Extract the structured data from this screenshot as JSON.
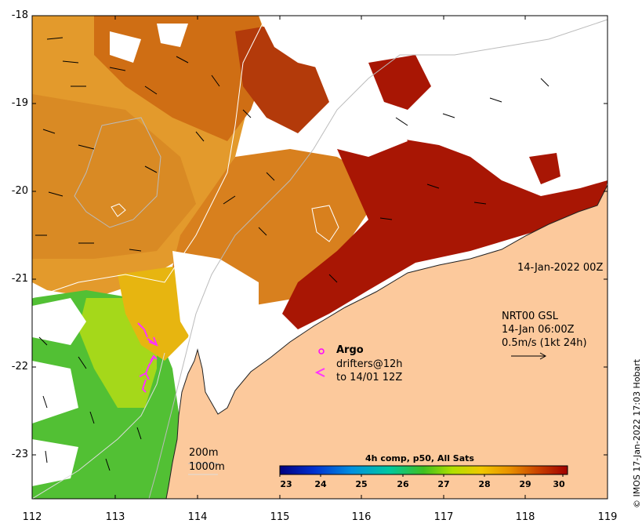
{
  "map": {
    "lat_ticks": [
      "-18",
      "-19",
      "-20",
      "-21",
      "-22",
      "-23"
    ],
    "lon_ticks": [
      "112",
      "113",
      "114",
      "115",
      "116",
      "117",
      "118",
      "119"
    ],
    "date_label": "14-Jan-2022 00Z",
    "current_label": {
      "line1": "NRT00 GSL",
      "line2": "14-Jan 06:00Z",
      "line3": "0.5m/s (1kt 24h)"
    },
    "legend": {
      "argo": "Argo",
      "drifters_line1": "drifters@12h",
      "drifters_line2": "to 14/01 12Z",
      "argo_marker": "o",
      "drifter_marker": "<"
    },
    "isobaths": {
      "shallow": "200m",
      "deep": "1000m"
    },
    "colorbar": {
      "title": "4h comp, p50, All Sats",
      "ticks": [
        "23",
        "24",
        "25",
        "26",
        "27",
        "28",
        "29",
        "30"
      ]
    },
    "credit": "© IMOS 17-Jan-2022 17:03 Hobart",
    "colors": {
      "land": "#fcc99c",
      "cloud": "#ffffff",
      "argo": "#ff00ff",
      "drifter": "#ff33ff"
    }
  }
}
